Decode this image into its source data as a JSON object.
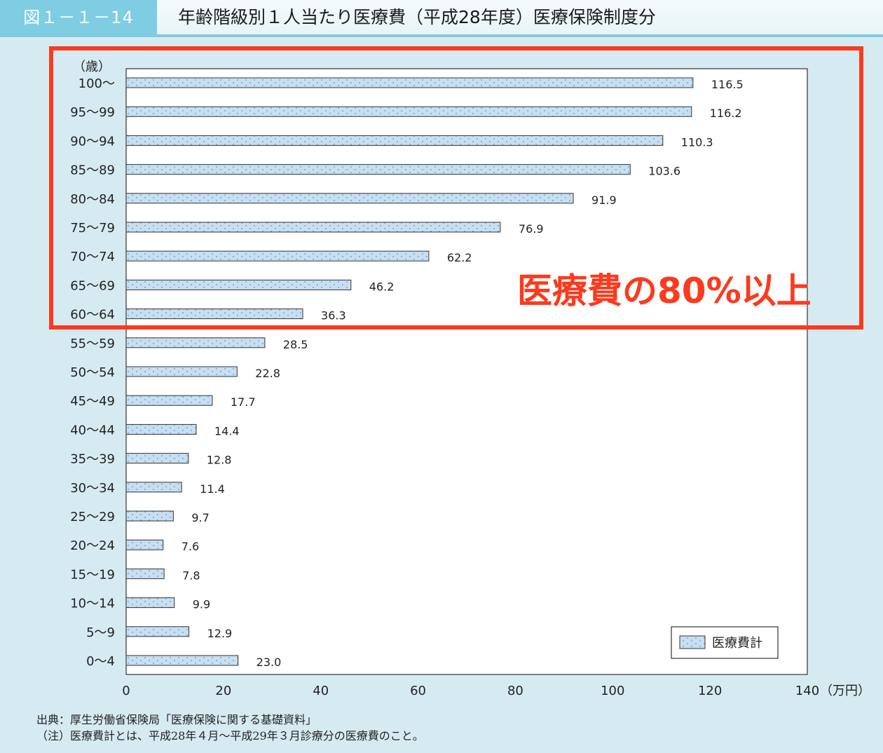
{
  "header": {
    "figure_number": "図１－１－14",
    "title": "年齢階級別１人当たり医療費（平成28年度）医療保険制度分"
  },
  "chart_data": {
    "type": "bar",
    "orientation": "horizontal",
    "title": "年齢階級別１人当たり医療費（平成28年度）医療保険制度分",
    "categories": [
      "100～",
      "95～99",
      "90～94",
      "85～89",
      "80～84",
      "75～79",
      "70～74",
      "65～69",
      "60～64",
      "55～59",
      "50～54",
      "45～49",
      "40～44",
      "35～39",
      "30～34",
      "25～29",
      "20～24",
      "15～19",
      "10～14",
      "5～9",
      "0～4"
    ],
    "series": [
      {
        "name": "医療費計",
        "values": [
          116.5,
          116.2,
          110.3,
          103.6,
          91.9,
          76.9,
          62.2,
          46.2,
          36.3,
          28.5,
          22.8,
          17.7,
          14.4,
          12.8,
          11.4,
          9.7,
          7.6,
          7.8,
          9.9,
          12.9,
          23.0
        ],
        "color": "#c7dff2"
      }
    ],
    "value_labels": [
      "116.5",
      "116.2",
      "110.3",
      "103.6",
      "91.9",
      "76.9",
      "62.2",
      "46.2",
      "36.3",
      "28.5",
      "22.8",
      "17.7",
      "14.4",
      "12.8",
      "11.4",
      "9.7",
      "7.6",
      "7.8",
      "9.9",
      "12.9",
      "23.0"
    ],
    "xlim": [
      0,
      140
    ],
    "x_ticks": [
      "0",
      "20",
      "40",
      "60",
      "80",
      "100",
      "120",
      "140"
    ],
    "x_unit_label": "（万円）",
    "y_unit_label": "（歳）",
    "grid": false,
    "legend": {
      "position": "bottom-right",
      "label": "医療費計"
    },
    "annotation": {
      "text": "医療費の80%以上",
      "color": "#fb3a1e",
      "highlighted_categories": [
        "100～",
        "95～99",
        "90～94",
        "85～89",
        "80～84",
        "75～79",
        "70～74",
        "65～69",
        "60～64"
      ]
    }
  },
  "footer": {
    "source": "出典：厚生労働省保険局「医療保険に関する基礎資料」",
    "note": "（注）医療費計とは、平成28年４月～平成29年３月診療分の医療費のこと。"
  }
}
